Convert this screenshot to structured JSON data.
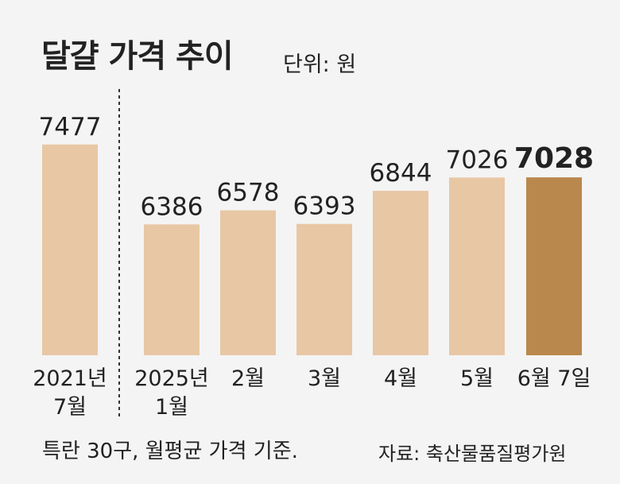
{
  "header": {
    "title": "달걀 가격 추이",
    "unit": "단위: 원"
  },
  "footer": {
    "note": "특란 30구, 월평균 가격 기준.",
    "source": "자료: 축산물품질평가원"
  },
  "colors": {
    "bar": "#e8c7a5",
    "highlight_bar": "#b9884c",
    "divider": "#333333"
  },
  "chart_data": {
    "type": "bar",
    "title": "달걀 가격 추이",
    "unit": "단위: 원",
    "categories": [
      [
        "2021년",
        "7월"
      ],
      [
        "2025년",
        "1월"
      ],
      [
        "2월"
      ],
      [
        "3월"
      ],
      [
        "4월"
      ],
      [
        "5월"
      ],
      [
        "6월 7일"
      ]
    ],
    "values": [
      7477,
      6386,
      6578,
      6393,
      6844,
      7026,
      7028
    ],
    "highlight_index": 6,
    "divider_after_index": 0,
    "ylim": [
      4600,
      7800
    ],
    "grid": false
  }
}
